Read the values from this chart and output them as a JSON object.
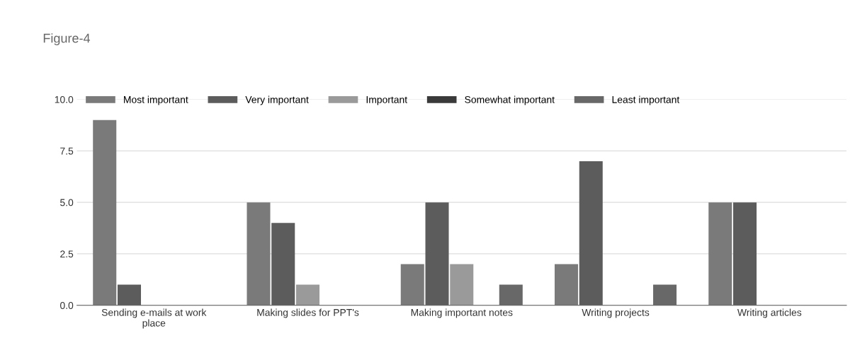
{
  "chart_data": {
    "type": "bar",
    "title": "Figure-4",
    "categories": [
      "Sending e-mails at work place",
      "Making slides for PPT's",
      "Making important notes",
      "Writing projects",
      "Writing articles"
    ],
    "series": [
      {
        "name": "Most important",
        "color": "#7a7a7a",
        "values": [
          9,
          5,
          2,
          2,
          5
        ]
      },
      {
        "name": "Very important",
        "color": "#5c5c5c",
        "values": [
          1,
          4,
          5,
          7,
          5
        ]
      },
      {
        "name": "Important",
        "color": "#9a9a9a",
        "values": [
          0,
          1,
          2,
          0,
          0
        ]
      },
      {
        "name": "Somewhat important",
        "color": "#3a3a3a",
        "values": [
          0,
          0,
          0,
          0,
          0
        ]
      },
      {
        "name": "Least important",
        "color": "#686868",
        "values": [
          0,
          0,
          1,
          1,
          0
        ]
      }
    ],
    "ylim": [
      0,
      10
    ],
    "yticks": [
      {
        "value": 0,
        "label": "0.0"
      },
      {
        "value": 2.5,
        "label": "2.5"
      },
      {
        "value": 5,
        "label": "5.0"
      },
      {
        "value": 7.5,
        "label": "7.5"
      },
      {
        "value": 10,
        "label": "10.0"
      }
    ],
    "grid": "y",
    "legend": "top left"
  }
}
